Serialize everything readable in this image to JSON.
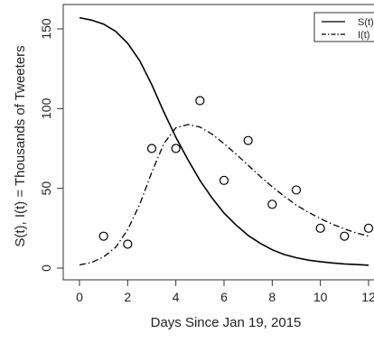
{
  "chart_data": {
    "type": "line",
    "title": "",
    "xlabel": "Days Since Jan 19, 2015",
    "ylabel": "S(t), I(t) = Thousands of Tweeters",
    "xlim": [
      0,
      12
    ],
    "ylim": [
      0,
      160
    ],
    "x_ticks": [
      0,
      2,
      4,
      6,
      8,
      10,
      12
    ],
    "x_tick_labels": [
      "0",
      "2",
      "4",
      "6",
      "8",
      "10",
      "12"
    ],
    "y_ticks": [
      0,
      50,
      100,
      150
    ],
    "y_tick_labels": [
      "0",
      "50",
      "100",
      "150"
    ],
    "grid": false,
    "legend_position": "top-right",
    "colors": {
      "line": "#000000",
      "axis": "#333333"
    },
    "series": [
      {
        "name": "S(t)",
        "kind": "line",
        "style": "solid",
        "x": [
          0,
          0.5,
          1,
          1.5,
          2,
          2.5,
          3,
          3.5,
          4,
          4.5,
          5,
          5.5,
          6,
          6.5,
          7,
          7.5,
          8,
          8.5,
          9,
          9.5,
          10,
          10.5,
          11,
          11.5,
          12
        ],
        "values": [
          157,
          155.5,
          153,
          148.5,
          141,
          130,
          115,
          98,
          82,
          68,
          55,
          44,
          34.5,
          27,
          20.5,
          15.5,
          11.5,
          8.5,
          6.5,
          5,
          4,
          3.2,
          2.6,
          2.2,
          1.8
        ]
      },
      {
        "name": "I(t)",
        "kind": "line",
        "style": "dashdot",
        "x": [
          0,
          0.5,
          1,
          1.5,
          2,
          2.5,
          3,
          3.5,
          4,
          4.5,
          5,
          5.5,
          6,
          6.5,
          7,
          7.5,
          8,
          8.5,
          9,
          9.5,
          10,
          10.5,
          11,
          11.5,
          12
        ],
        "values": [
          2,
          3.5,
          7,
          13,
          24,
          40,
          60,
          78,
          88,
          90,
          88.5,
          84,
          78,
          71.5,
          64.5,
          57.5,
          51,
          45,
          39.5,
          35,
          31,
          27.5,
          24.5,
          22,
          20
        ]
      },
      {
        "name": "",
        "kind": "scatter",
        "x": [
          1,
          2,
          3,
          4,
          5,
          6,
          7,
          8,
          9,
          10,
          11,
          12
        ],
        "values": [
          20,
          15,
          75,
          75,
          105,
          55,
          80,
          40,
          49,
          25,
          20,
          25
        ]
      }
    ]
  }
}
